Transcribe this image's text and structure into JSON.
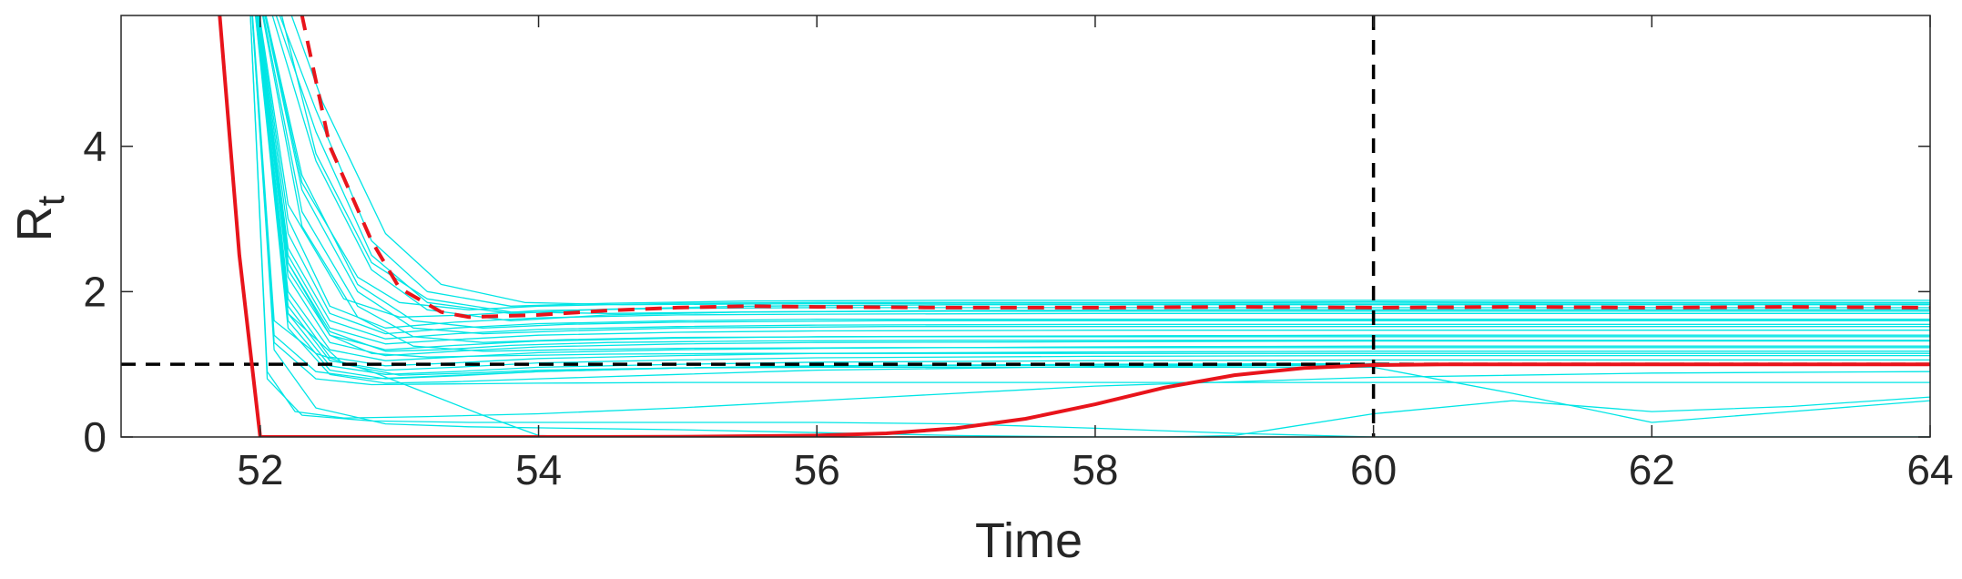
{
  "chart_data": {
    "type": "line",
    "xlabel": "Time",
    "ylabel_main": "R",
    "ylabel_sub": "t",
    "xlim": [
      51,
      64
    ],
    "ylim": [
      0,
      5.8
    ],
    "xticks": [
      52,
      54,
      56,
      58,
      60,
      62,
      64
    ],
    "yticks": [
      0,
      2,
      4
    ],
    "grid": false,
    "colors": {
      "ensemble": "#00e5e5",
      "highlight": "#e8141b",
      "reference": "#000000",
      "axes": "#262626"
    },
    "reference_lines": [
      {
        "orientation": "horizontal",
        "value": 1,
        "style": "dashed"
      },
      {
        "orientation": "vertical",
        "value": 60,
        "style": "dashed"
      }
    ],
    "series": [
      {
        "style": "solid",
        "color": "#e8141b",
        "width": 4,
        "x": [
          51.4,
          51.7,
          51.85,
          52.0,
          54,
          55,
          56,
          56.5,
          57,
          57.5,
          58,
          58.5,
          59,
          59.5,
          60,
          60.5,
          61,
          62,
          63,
          64
        ],
        "y": [
          8,
          6.0,
          2.5,
          0.0,
          0.0,
          0.002,
          0.02,
          0.05,
          0.12,
          0.25,
          0.45,
          0.68,
          0.85,
          0.95,
          0.99,
          1.0,
          1.0,
          1.0,
          1.0,
          1.0
        ]
      },
      {
        "style": "dashed",
        "color": "#e8141b",
        "width": 4,
        "x": [
          52.0,
          52.3,
          52.5,
          52.8,
          53.0,
          53.3,
          53.5,
          54,
          54.5,
          55,
          55.5,
          56,
          57,
          58,
          59,
          60,
          61,
          62,
          63,
          64
        ],
        "y": [
          8,
          5.8,
          4.0,
          2.7,
          2.05,
          1.72,
          1.65,
          1.68,
          1.74,
          1.78,
          1.8,
          1.79,
          1.78,
          1.78,
          1.79,
          1.78,
          1.79,
          1.78,
          1.79,
          1.78
        ]
      },
      {
        "color": "#00e5e5",
        "width": 1.3,
        "x": [
          51.9,
          52.3,
          52.7,
          53.0,
          53.5,
          54,
          55,
          56,
          58,
          60,
          62,
          64
        ],
        "y": [
          7,
          3.5,
          2.2,
          1.85,
          1.75,
          1.8,
          1.84,
          1.85,
          1.85,
          1.86,
          1.85,
          1.85
        ]
      },
      {
        "color": "#00e5e5",
        "width": 1.3,
        "x": [
          51.9,
          52.2,
          52.6,
          53.0,
          53.5,
          54,
          55,
          56,
          58,
          60,
          62,
          64
        ],
        "y": [
          7,
          3.2,
          1.9,
          1.65,
          1.68,
          1.74,
          1.77,
          1.78,
          1.78,
          1.78,
          1.78,
          1.78
        ]
      },
      {
        "color": "#00e5e5",
        "width": 1.3,
        "x": [
          51.9,
          52.2,
          52.5,
          52.9,
          53.4,
          54,
          55,
          56,
          58,
          60,
          62,
          64
        ],
        "y": [
          7,
          3.0,
          1.8,
          1.5,
          1.58,
          1.64,
          1.68,
          1.69,
          1.7,
          1.7,
          1.7,
          1.7
        ]
      },
      {
        "color": "#00e5e5",
        "width": 1.3,
        "x": [
          51.9,
          52.2,
          52.5,
          52.9,
          53.4,
          54,
          55,
          56,
          58,
          60,
          62,
          64
        ],
        "y": [
          7,
          2.8,
          1.7,
          1.42,
          1.5,
          1.56,
          1.6,
          1.62,
          1.62,
          1.62,
          1.62,
          1.62
        ]
      },
      {
        "color": "#00e5e5",
        "width": 1.3,
        "x": [
          51.9,
          52.2,
          52.5,
          52.9,
          53.4,
          54,
          55,
          56,
          58,
          60,
          62,
          64
        ],
        "y": [
          7,
          2.6,
          1.6,
          1.35,
          1.42,
          1.48,
          1.52,
          1.54,
          1.55,
          1.55,
          1.55,
          1.55
        ]
      },
      {
        "color": "#00e5e5",
        "width": 1.3,
        "x": [
          51.9,
          52.2,
          52.5,
          52.9,
          53.4,
          54,
          55,
          56,
          58,
          60,
          62,
          64
        ],
        "y": [
          7,
          2.5,
          1.5,
          1.28,
          1.34,
          1.4,
          1.44,
          1.46,
          1.47,
          1.47,
          1.47,
          1.47
        ]
      },
      {
        "color": "#00e5e5",
        "width": 1.3,
        "x": [
          51.9,
          52.2,
          52.5,
          52.9,
          53.4,
          54,
          55,
          56,
          58,
          60,
          62,
          64
        ],
        "y": [
          7,
          2.4,
          1.4,
          1.2,
          1.26,
          1.32,
          1.36,
          1.38,
          1.39,
          1.4,
          1.4,
          1.4
        ]
      },
      {
        "color": "#00e5e5",
        "width": 1.3,
        "x": [
          51.9,
          52.2,
          52.5,
          52.9,
          53.4,
          54,
          55,
          56,
          58,
          60,
          62,
          64
        ],
        "y": [
          7,
          2.2,
          1.3,
          1.12,
          1.18,
          1.24,
          1.28,
          1.3,
          1.31,
          1.32,
          1.32,
          1.32
        ]
      },
      {
        "color": "#00e5e5",
        "width": 1.3,
        "x": [
          51.9,
          52.2,
          52.5,
          52.9,
          53.4,
          54,
          55,
          56,
          58,
          60,
          62,
          64
        ],
        "y": [
          7,
          2.0,
          1.2,
          1.05,
          1.1,
          1.16,
          1.2,
          1.22,
          1.24,
          1.25,
          1.25,
          1.25
        ]
      },
      {
        "color": "#00e5e5",
        "width": 1.3,
        "x": [
          51.9,
          52.2,
          52.5,
          52.9,
          53.4,
          54,
          55,
          56,
          58,
          60,
          62,
          64
        ],
        "y": [
          7,
          1.9,
          1.1,
          0.98,
          1.02,
          1.08,
          1.12,
          1.15,
          1.17,
          1.18,
          1.18,
          1.18
        ]
      },
      {
        "color": "#00e5e5",
        "width": 1.3,
        "x": [
          51.9,
          52.2,
          52.5,
          52.9,
          53.4,
          54,
          55,
          56,
          58,
          60,
          62,
          64
        ],
        "y": [
          7,
          1.8,
          1.05,
          0.92,
          0.96,
          1.02,
          1.06,
          1.09,
          1.11,
          1.12,
          1.12,
          1.12
        ]
      },
      {
        "color": "#00e5e5",
        "width": 1.3,
        "x": [
          51.9,
          52.2,
          52.5,
          52.9,
          53.4,
          54,
          55,
          56,
          58,
          60,
          62,
          64
        ],
        "y": [
          7,
          1.7,
          0.98,
          0.86,
          0.9,
          0.96,
          1.0,
          1.03,
          1.05,
          1.06,
          1.06,
          1.06
        ]
      },
      {
        "color": "#00e5e5",
        "width": 1.3,
        "x": [
          51.9,
          52.2,
          52.5,
          52.9,
          53.4,
          54,
          55,
          56,
          58,
          60,
          62,
          64
        ],
        "y": [
          7,
          1.6,
          0.92,
          0.8,
          0.84,
          0.9,
          0.95,
          0.98,
          1.0,
          1.01,
          1.01,
          1.01
        ]
      },
      {
        "color": "#00e5e5",
        "width": 1.3,
        "x": [
          51.9,
          52.2,
          52.5,
          52.9,
          53.4,
          54,
          55,
          56,
          58,
          60,
          62,
          64
        ],
        "y": [
          7,
          1.5,
          0.86,
          0.74,
          0.76,
          0.8,
          0.86,
          0.92,
          0.97,
          0.99,
          1.0,
          1.0
        ]
      },
      {
        "color": "#00e5e5",
        "width": 1.3,
        "x": [
          51.9,
          52.4,
          52.8,
          53.2,
          53.8,
          54.5,
          55.5,
          57,
          59,
          61,
          63,
          64
        ],
        "y": [
          7,
          4.5,
          2.7,
          2.0,
          1.8,
          1.84,
          1.87,
          1.88,
          1.88,
          1.88,
          1.88,
          1.88
        ]
      },
      {
        "color": "#00e5e5",
        "width": 1.3,
        "x": [
          51.9,
          52.4,
          52.8,
          53.2,
          53.8,
          54.5,
          55.5,
          57,
          59,
          61,
          63,
          64
        ],
        "y": [
          7,
          4.2,
          2.5,
          1.85,
          1.7,
          1.76,
          1.8,
          1.82,
          1.82,
          1.82,
          1.82,
          1.82
        ]
      },
      {
        "color": "#00e5e5",
        "width": 1.3,
        "x": [
          51.9,
          52.4,
          52.8,
          53.2,
          53.8,
          54.5,
          55.5,
          57,
          59,
          61,
          63,
          64
        ],
        "y": [
          7,
          3.8,
          2.3,
          1.75,
          1.6,
          1.68,
          1.72,
          1.74,
          1.75,
          1.75,
          1.75,
          1.75
        ]
      },
      {
        "color": "#00e5e5",
        "width": 1.3,
        "x": [
          51.9,
          52.3,
          52.7,
          53.1,
          53.6,
          54.2,
          55,
          56.5,
          58.5,
          60.5,
          62.5,
          64
        ],
        "y": [
          7,
          3.6,
          2.1,
          1.6,
          1.5,
          1.55,
          1.58,
          1.6,
          1.6,
          1.6,
          1.6,
          1.6
        ]
      },
      {
        "color": "#00e5e5",
        "width": 1.3,
        "x": [
          51.9,
          52.3,
          52.7,
          53.1,
          53.6,
          54.2,
          55,
          56.5,
          58.5,
          60.5,
          62.5,
          64
        ],
        "y": [
          7,
          3.4,
          2.0,
          1.5,
          1.42,
          1.46,
          1.5,
          1.52,
          1.52,
          1.52,
          1.52,
          1.52
        ]
      },
      {
        "color": "#00e5e5",
        "width": 1.3,
        "x": [
          51.9,
          52.3,
          52.7,
          53.1,
          53.6,
          54.2,
          55,
          56.5,
          58.5,
          60.5,
          62.5,
          64
        ],
        "y": [
          7,
          3.1,
          1.8,
          1.38,
          1.3,
          1.34,
          1.37,
          1.38,
          1.38,
          1.38,
          1.38,
          1.38
        ]
      },
      {
        "color": "#00e5e5",
        "width": 1.3,
        "x": [
          51.9,
          52.3,
          52.7,
          53.1,
          53.6,
          54.2,
          55,
          56.5,
          58.5,
          60.5,
          62.5,
          64
        ],
        "y": [
          7,
          2.9,
          1.65,
          1.25,
          1.18,
          1.2,
          1.22,
          1.23,
          1.23,
          1.23,
          1.23,
          1.23
        ]
      },
      {
        "color": "#00e5e5",
        "width": 1.3,
        "x": [
          52.0,
          52.4,
          52.8,
          53.2,
          53.8,
          54.5,
          55.5,
          57,
          59,
          61,
          63,
          64
        ],
        "y": [
          7,
          3.9,
          2.4,
          1.9,
          1.72,
          1.7,
          1.72,
          1.73,
          1.73,
          1.73,
          1.73,
          1.73
        ]
      },
      {
        "color": "#00e5e5",
        "width": 1.3,
        "x": [
          52.0,
          52.45,
          52.9,
          53.3,
          53.9,
          54.6,
          55.6,
          57,
          59,
          61,
          63,
          64
        ],
        "y": [
          7,
          4.6,
          2.8,
          2.1,
          1.85,
          1.82,
          1.83,
          1.84,
          1.84,
          1.84,
          1.84,
          1.84
        ]
      },
      {
        "color": "#00e5e5",
        "width": 1.3,
        "x": [
          51.9,
          52.2,
          52.5,
          52.8,
          53.2,
          53.8,
          54.5,
          55.5,
          57,
          59,
          61,
          64
        ],
        "y": [
          7,
          2.3,
          1.4,
          1.15,
          1.1,
          1.12,
          1.14,
          1.15,
          1.15,
          1.15,
          1.15,
          1.15
        ]
      },
      {
        "color": "#00e5e5",
        "width": 1.3,
        "x": [
          51.9,
          52.1,
          52.4,
          52.8,
          53.3,
          54,
          55,
          56.5,
          58.5,
          60.5,
          62.5,
          64
        ],
        "y": [
          7,
          1.4,
          0.9,
          0.8,
          0.84,
          0.9,
          0.95,
          0.98,
          0.99,
          1.0,
          1.0,
          1.0
        ]
      },
      {
        "color": "#00e5e5",
        "width": 1.3,
        "x": [
          51.9,
          52.1,
          52.4,
          52.8,
          53.4,
          54,
          55,
          56,
          57.5,
          59,
          61,
          64
        ],
        "y": [
          7,
          1.3,
          0.8,
          0.72,
          0.73,
          0.74,
          0.75,
          0.75,
          0.75,
          0.75,
          0.75,
          0.75
        ]
      },
      {
        "color": "#00e5e5",
        "width": 1.3,
        "x": [
          51.9,
          52.05,
          52.25,
          52.6,
          53.2,
          54,
          55,
          56.5,
          58,
          60,
          62,
          64
        ],
        "y": [
          7,
          0.9,
          0.35,
          0.26,
          0.28,
          0.32,
          0.4,
          0.55,
          0.7,
          0.82,
          0.88,
          0.9
        ]
      },
      {
        "color": "#00e5e5",
        "width": 1.3,
        "x": [
          51.9,
          52.05,
          52.3,
          52.8,
          53.5,
          54.2,
          55,
          56,
          57,
          58,
          59,
          60,
          61,
          62,
          63,
          64
        ],
        "y": [
          7,
          0.8,
          0.3,
          0.22,
          0.2,
          0.2,
          0.2,
          0.2,
          0.18,
          0.12,
          0.05,
          0.0,
          0.0,
          0.0,
          0.0,
          0.0
        ]
      },
      {
        "color": "#00e5e5",
        "width": 1.3,
        "x": [
          51.9,
          52.1,
          52.4,
          52.9,
          53.5,
          54.2,
          55,
          56,
          57,
          58,
          58.5,
          59,
          60,
          61,
          62,
          63,
          64
        ],
        "y": [
          7,
          1.2,
          0.4,
          0.18,
          0.14,
          0.12,
          0.1,
          0.06,
          0.02,
          0.0,
          0.0,
          0.02,
          0.32,
          0.5,
          0.35,
          0.42,
          0.55
        ]
      },
      {
        "color": "#00e5e5",
        "width": 1.3,
        "x": [
          51.9,
          52.1,
          52.4,
          52.8,
          53.2,
          53.6,
          54.0,
          54.4,
          55,
          56,
          58,
          60,
          62,
          64
        ],
        "y": [
          7,
          1.6,
          1.15,
          0.9,
          0.6,
          0.3,
          0.02,
          0.0,
          0.0,
          0.0,
          0.0,
          0.0,
          0.0,
          0.0
        ]
      },
      {
        "color": "#00e5e5",
        "width": 1.3,
        "x": [
          51.9,
          52.2,
          52.6,
          53.0,
          53.5,
          54,
          55,
          56,
          57,
          58,
          59,
          60,
          61,
          62,
          63,
          64
        ],
        "y": [
          7,
          1.7,
          1.0,
          0.85,
          0.88,
          0.92,
          0.95,
          0.96,
          0.96,
          0.96,
          0.96,
          0.96,
          0.6,
          0.2,
          0.35,
          0.5
        ]
      },
      {
        "color": "#00e5e5",
        "width": 1.3,
        "x": [
          51.9,
          52.2,
          52.5,
          52.9,
          53.3,
          53.8,
          54.5,
          55.5,
          57,
          59,
          61,
          64
        ],
        "y": [
          7,
          2.4,
          1.45,
          1.18,
          1.2,
          1.26,
          1.3,
          1.32,
          1.33,
          1.33,
          1.33,
          1.33
        ]
      }
    ]
  }
}
